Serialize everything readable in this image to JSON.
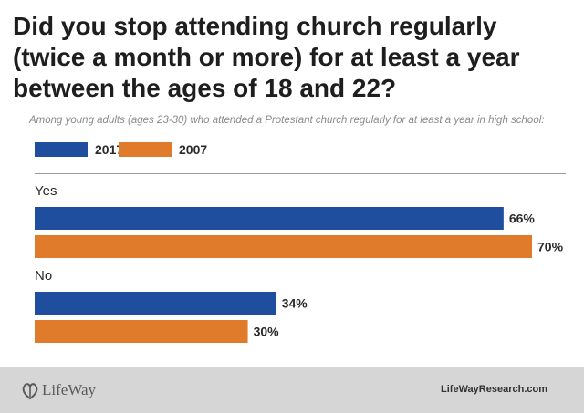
{
  "title": "Did you stop attending church regularly (twice a month or more) for at least a year between the ages of 18 and 22?",
  "subtitle": "Among young adults (ages 23-30) who attended a Protestant church regularly for at least a year in high school:",
  "chart_data": {
    "type": "bar",
    "orientation": "horizontal",
    "categories": [
      "Yes",
      "No"
    ],
    "series": [
      {
        "name": "2017",
        "values": [
          66,
          34
        ],
        "labels": [
          "66%",
          "34%"
        ],
        "color": "#1f4e9e"
      },
      {
        "name": "2007",
        "values": [
          70,
          30
        ],
        "labels": [
          "70%",
          "30%"
        ],
        "color": "#e07b2c"
      }
    ],
    "xlim": [
      0,
      70
    ],
    "grid": false,
    "legend": "top-left"
  },
  "footer": {
    "brand": "LifeWay",
    "website": "LifeWayResearch.com"
  },
  "colors": {
    "footer_bg": "#d6d6d6",
    "title": "#1e1e1e"
  }
}
